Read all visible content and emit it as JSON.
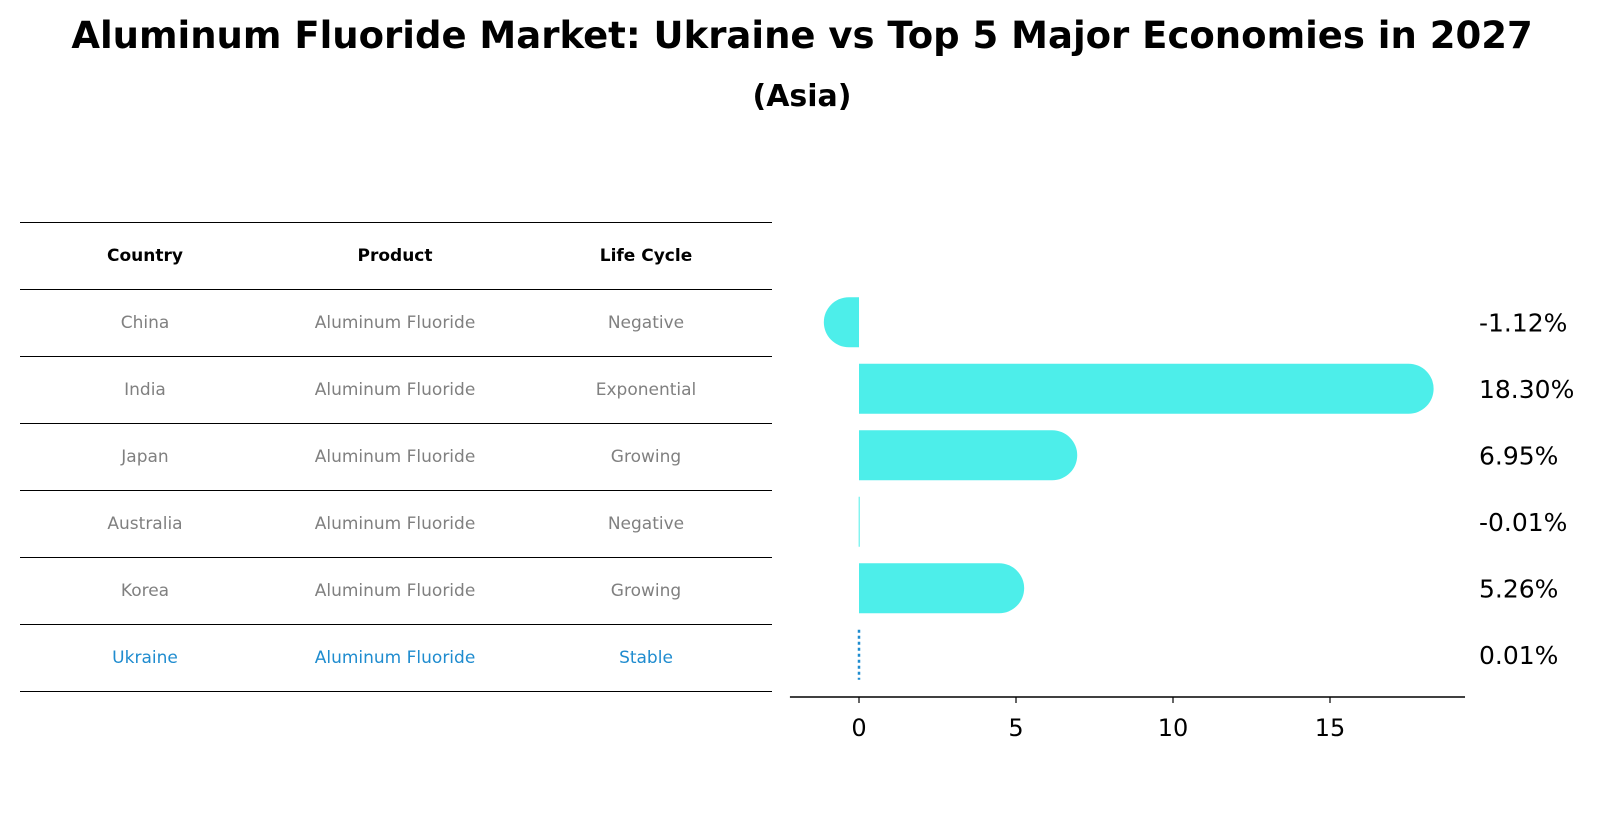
{
  "title": "Aluminum Fluoride Market: Ukraine vs Top 5 Major Economies in 2027",
  "subtitle": "(Asia)",
  "table": {
    "headers": [
      "Country",
      "Product",
      "Life Cycle"
    ],
    "rows": [
      [
        "China",
        "Aluminum Fluoride",
        "Negative"
      ],
      [
        "India",
        "Aluminum Fluoride",
        "Exponential"
      ],
      [
        "Japan",
        "Aluminum Fluoride",
        "Growing"
      ],
      [
        "Australia",
        "Aluminum Fluoride",
        "Negative"
      ],
      [
        "Korea",
        "Aluminum Fluoride",
        "Growing"
      ],
      [
        "Ukraine",
        "Aluminum Fluoride",
        "Stable"
      ]
    ]
  },
  "colors": {
    "bar": "#4deeea",
    "highlight": "#1f8ccf",
    "muted": "#808080"
  },
  "chart_data": {
    "type": "bar",
    "orientation": "horizontal",
    "categories": [
      "China",
      "India",
      "Japan",
      "Australia",
      "Korea",
      "Ukraine"
    ],
    "values": [
      -1.12,
      18.3,
      6.95,
      -0.01,
      5.26,
      0.01
    ],
    "value_labels": [
      "-1.12%",
      "18.30%",
      "6.95%",
      "-0.01%",
      "5.26%",
      "0.01%"
    ],
    "highlight_category": "Ukraine",
    "xticks": [
      0,
      5,
      10,
      15
    ],
    "xlim": [
      -2.2,
      19.3
    ],
    "xlabel": "",
    "ylabel": ""
  }
}
